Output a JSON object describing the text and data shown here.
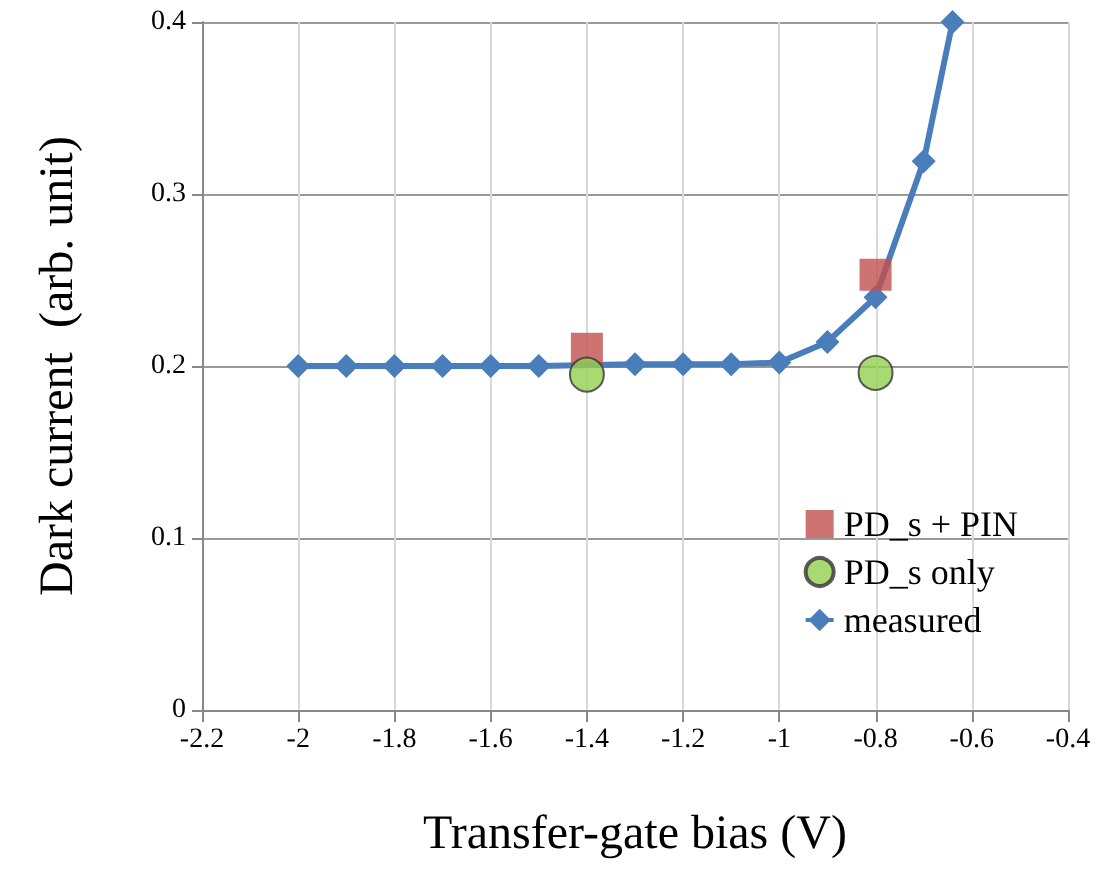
{
  "chart_data": {
    "type": "scatter",
    "xlabel": "Transfer-gate bias (V)",
    "ylabel": "Dark current  (arb. unit)",
    "xlim": [
      -2.2,
      -0.4
    ],
    "xticks": [
      -2.2,
      -2,
      -1.8,
      -1.6,
      -1.4,
      -1.2,
      -1,
      -0.8,
      -0.6,
      -0.4
    ],
    "ylim": [
      0,
      0.4
    ],
    "yticks": [
      0,
      0.1,
      0.2,
      0.3,
      0.4
    ],
    "grid": true,
    "legend": "bottom right",
    "series": [
      {
        "name": "PD_s + PIN",
        "marker": "square",
        "color": "#c0504d",
        "x": [
          -1.4,
          -0.8
        ],
        "values": [
          0.21,
          0.253
        ]
      },
      {
        "name": "PD_s only",
        "marker": "circle",
        "color": "#92d050",
        "x": [
          -1.4,
          -0.8
        ],
        "values": [
          0.195,
          0.196
        ]
      },
      {
        "name": "measured",
        "type": "line",
        "marker": "diamond",
        "color": "#4a7ebb",
        "x": [
          -2,
          -1.9,
          -1.8,
          -1.7,
          -1.6,
          -1.5,
          -1.4,
          -1.3,
          -1.2,
          -1.1,
          -1,
          -0.9,
          -0.8,
          -0.7,
          -0.64
        ],
        "values": [
          0.2,
          0.2,
          0.2,
          0.2,
          0.2,
          0.2,
          null,
          0.201,
          0.201,
          0.201,
          0.202,
          0.214,
          0.24,
          0.319,
          0.4
        ]
      }
    ]
  }
}
